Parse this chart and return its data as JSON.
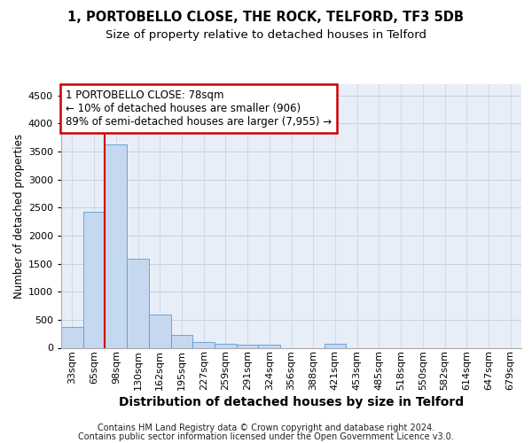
{
  "title_line1": "1, PORTOBELLO CLOSE, THE ROCK, TELFORD, TF3 5DB",
  "title_line2": "Size of property relative to detached houses in Telford",
  "xlabel": "Distribution of detached houses by size in Telford",
  "ylabel": "Number of detached properties",
  "categories": [
    "33sqm",
    "65sqm",
    "98sqm",
    "130sqm",
    "162sqm",
    "195sqm",
    "227sqm",
    "259sqm",
    "291sqm",
    "324sqm",
    "356sqm",
    "388sqm",
    "421sqm",
    "453sqm",
    "485sqm",
    "518sqm",
    "550sqm",
    "582sqm",
    "614sqm",
    "647sqm",
    "679sqm"
  ],
  "values": [
    370,
    2420,
    3620,
    1580,
    600,
    230,
    110,
    70,
    60,
    50,
    0,
    0,
    70,
    0,
    0,
    0,
    0,
    0,
    0,
    0,
    0
  ],
  "bar_color": "#c5d8f0",
  "bar_edge_color": "#5b9bd5",
  "vline_color": "#cc0000",
  "annotation_line1": "1 PORTOBELLO CLOSE: 78sqm",
  "annotation_line2": "← 10% of detached houses are smaller (906)",
  "annotation_line3": "89% of semi-detached houses are larger (7,955) →",
  "annotation_box_color": "#cc0000",
  "ylim": [
    0,
    4700
  ],
  "yticks": [
    0,
    500,
    1000,
    1500,
    2000,
    2500,
    3000,
    3500,
    4000,
    4500
  ],
  "grid_color": "#c8d0dc",
  "background_color": "#e8eef8",
  "footer_line1": "Contains HM Land Registry data © Crown copyright and database right 2024.",
  "footer_line2": "Contains public sector information licensed under the Open Government Licence v3.0.",
  "title_fontsize": 10.5,
  "subtitle_fontsize": 9.5,
  "xlabel_fontsize": 10,
  "ylabel_fontsize": 8.5,
  "tick_fontsize": 8,
  "annotation_fontsize": 8.5,
  "footer_fontsize": 7
}
